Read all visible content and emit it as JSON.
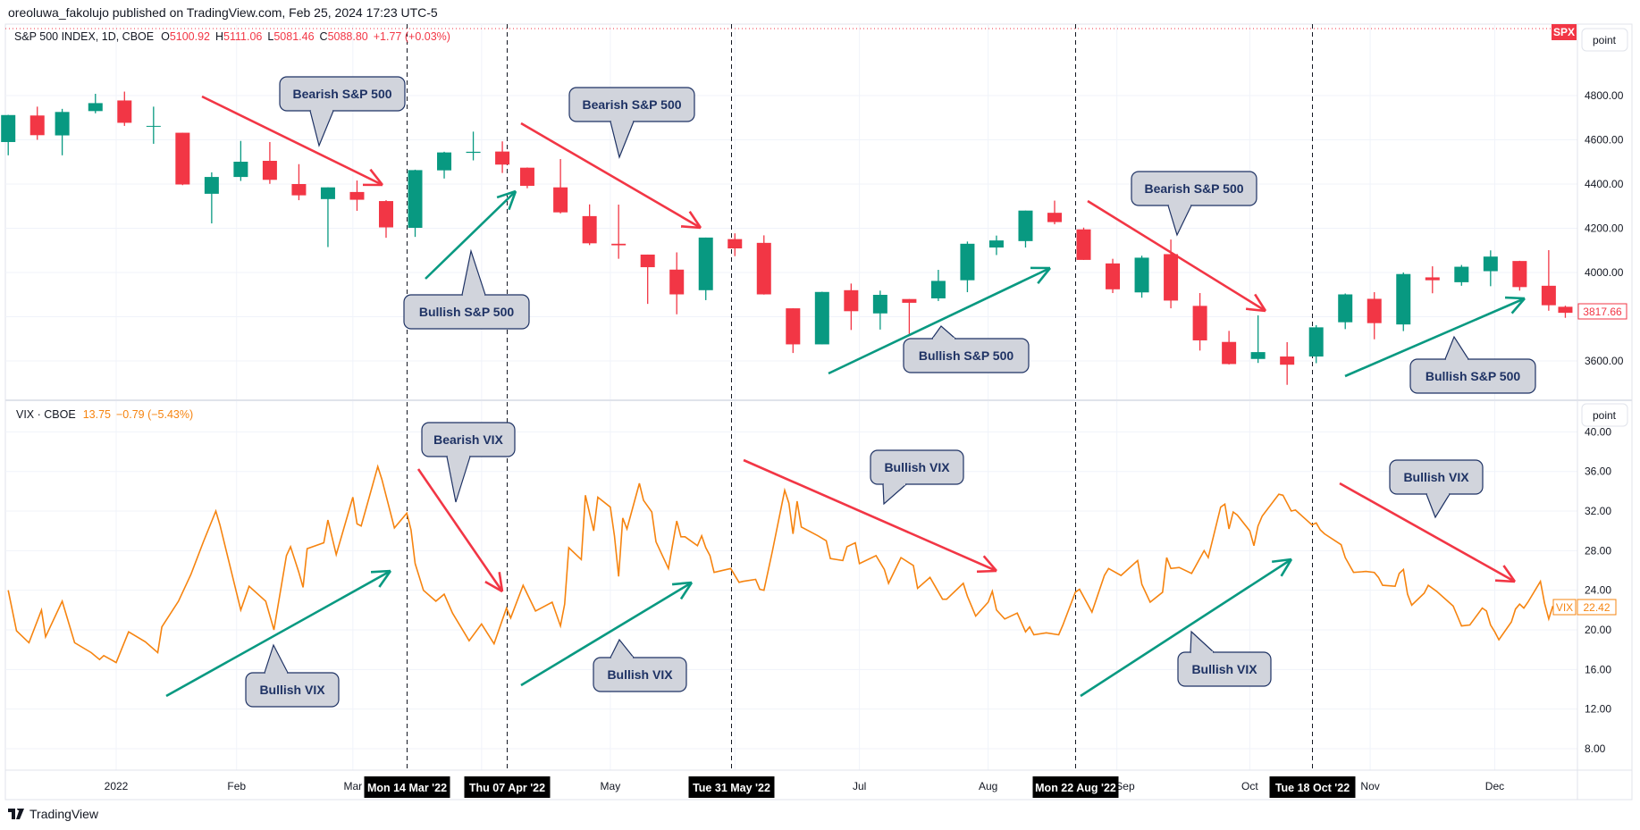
{
  "header": {
    "published": "oreoluwa_fakolujo published on TradingView.com, Feb 25, 2024 17:23 UTC-5"
  },
  "colors": {
    "up": "#089981",
    "down": "#f23645",
    "vix_line": "#f68410",
    "bearish_arrow": "#f23645",
    "bullish_arrow": "#089981",
    "callout_fill": "#d1d4dc",
    "callout_text": "#1e3264",
    "grid": "#f0f3fa"
  },
  "spx_legend": {
    "name": "S&P 500 INDEX, 1D, CBOE",
    "o_label": "O",
    "o": "5100.92",
    "h_label": "H",
    "h": "5111.06",
    "l_label": "L",
    "l": "5081.46",
    "c_label": "C",
    "c": "5088.80",
    "change": "+1.77 (+0.03%)"
  },
  "vix_legend": {
    "name": "VIX · CBOE",
    "value": "13.75",
    "change": "−0.79 (−5.43%)"
  },
  "spx_symbol_tag": "SPX",
  "scale_button": "point",
  "spx_last_price": "3817.66",
  "vix_tag_name": "VIX",
  "vix_last_value": "22.42",
  "spx_axis": [
    "4800.00",
    "4600.00",
    "4400.00",
    "4200.00",
    "4000.00",
    "3600.00"
  ],
  "vix_axis": [
    "40.00",
    "36.00",
    "32.00",
    "28.00",
    "24.00",
    "20.00",
    "16.00",
    "12.00",
    "8.00"
  ],
  "time_axis": [
    "2022",
    "Feb",
    "Mar",
    "May",
    "Jul",
    "Aug",
    "Sep",
    "Oct",
    "Nov",
    "Dec"
  ],
  "crosshair_dates": [
    {
      "label": "Mon 14 Mar '22",
      "date": "2022-03-14"
    },
    {
      "label": "Thu 07 Apr '22",
      "date": "2022-04-07"
    },
    {
      "label": "Tue 31 May '22",
      "date": "2022-05-31"
    },
    {
      "label": "Mon 22 Aug '22",
      "date": "2022-08-22"
    },
    {
      "label": "Tue 18 Oct '22",
      "date": "2022-10-18"
    }
  ],
  "annotations": {
    "callouts": [
      "Bearish S&P 500",
      "Bearish S&P 500",
      "Bearish S&P 500",
      "Bullish S&P 500",
      "Bullish S&P 500",
      "Bullish S&P 500",
      "Bearish VIX",
      "Bullish VIX",
      "Bullish VIX",
      "Bullish VIX",
      "Bullish VIX",
      "Bullish VIX"
    ]
  },
  "footer": {
    "brand": "TradingView"
  },
  "chart_data": [
    {
      "type": "candlestick",
      "series": "S&P 500 INDEX, 1D, CBOE",
      "ylim": [
        3450,
        4950
      ],
      "grid": true,
      "columns": [
        "week_ending",
        "open",
        "high",
        "low",
        "close"
      ],
      "ohlc": [
        [
          "2021-12-10",
          4590,
          4713,
          4530,
          4712
        ],
        [
          "2021-12-17",
          4710,
          4750,
          4600,
          4621
        ],
        [
          "2021-12-23",
          4620,
          4740,
          4530,
          4726
        ],
        [
          "2021-12-31",
          4730,
          4808,
          4720,
          4766
        ],
        [
          "2022-01-07",
          4778,
          4818,
          4663,
          4677
        ],
        [
          "2022-01-14",
          4663,
          4750,
          4582,
          4663
        ],
        [
          "2022-01-21",
          4632,
          4632,
          4395,
          4398
        ],
        [
          "2022-01-28",
          4356,
          4453,
          4222,
          4432
        ],
        [
          "2022-02-04",
          4432,
          4595,
          4414,
          4501
        ],
        [
          "2022-02-11",
          4505,
          4590,
          4401,
          4419
        ],
        [
          "2022-02-18",
          4400,
          4490,
          4327,
          4349
        ],
        [
          "2022-02-25",
          4332,
          4385,
          4115,
          4385
        ],
        [
          "2022-03-04",
          4364,
          4416,
          4279,
          4329
        ],
        [
          "2022-03-11",
          4323,
          4327,
          4157,
          4204
        ],
        [
          "2022-03-18",
          4202,
          4465,
          4161,
          4463
        ],
        [
          "2022-03-25",
          4462,
          4546,
          4425,
          4543
        ],
        [
          "2022-04-01",
          4541,
          4637,
          4507,
          4546
        ],
        [
          "2022-04-08",
          4547,
          4593,
          4450,
          4488
        ],
        [
          "2022-04-14",
          4474,
          4475,
          4381,
          4392
        ],
        [
          "2022-04-22",
          4385,
          4513,
          4267,
          4272
        ],
        [
          "2022-04-29",
          4255,
          4308,
          4124,
          4132
        ],
        [
          "2022-05-06",
          4130,
          4307,
          4062,
          4123
        ],
        [
          "2022-05-13",
          4081,
          4081,
          3858,
          4024
        ],
        [
          "2022-05-20",
          4013,
          4091,
          3811,
          3901
        ],
        [
          "2022-05-27",
          3920,
          4158,
          3875,
          4158
        ],
        [
          "2022-06-03",
          4151,
          4177,
          4074,
          4109
        ],
        [
          "2022-06-10",
          4134,
          4168,
          3900,
          3901
        ],
        [
          "2022-06-17",
          3838,
          3838,
          3636,
          3675
        ],
        [
          "2022-06-24",
          3675,
          3913,
          3675,
          3912
        ],
        [
          "2022-07-01",
          3920,
          3950,
          3740,
          3825
        ],
        [
          "2022-07-08",
          3815,
          3918,
          3742,
          3899
        ],
        [
          "2022-07-15",
          3880,
          3880,
          3722,
          3863
        ],
        [
          "2022-07-22",
          3883,
          4012,
          3871,
          3962
        ],
        [
          "2022-07-29",
          3965,
          4140,
          3911,
          4130
        ],
        [
          "2022-08-05",
          4113,
          4167,
          4079,
          4145
        ],
        [
          "2022-08-12",
          4142,
          4280,
          4113,
          4280
        ],
        [
          "2022-08-19",
          4270,
          4325,
          4218,
          4228
        ],
        [
          "2022-08-26",
          4195,
          4203,
          4057,
          4057
        ],
        [
          "2022-09-02",
          4041,
          4062,
          3907,
          3924
        ],
        [
          "2022-09-09",
          3910,
          4076,
          3886,
          4067
        ],
        [
          "2022-09-16",
          4083,
          4149,
          3838,
          3873
        ],
        [
          "2022-09-23",
          3849,
          3907,
          3647,
          3693
        ],
        [
          "2022-09-30",
          3686,
          3736,
          3584,
          3586
        ],
        [
          "2022-10-07",
          3609,
          3806,
          3591,
          3640
        ],
        [
          "2022-10-14",
          3620,
          3685,
          3492,
          3583
        ],
        [
          "2022-10-21",
          3620,
          3762,
          3590,
          3752
        ],
        [
          "2022-10-28",
          3775,
          3905,
          3744,
          3901
        ],
        [
          "2022-11-04",
          3881,
          3911,
          3698,
          3771
        ],
        [
          "2022-11-11",
          3765,
          4000,
          3735,
          3993
        ],
        [
          "2022-11-18",
          3978,
          4028,
          3906,
          3965
        ],
        [
          "2022-11-25",
          3956,
          4034,
          3940,
          4026
        ],
        [
          "2022-12-02",
          4006,
          4100,
          3938,
          4072
        ],
        [
          "2022-12-09",
          4052,
          4053,
          3918,
          3934
        ],
        [
          "2022-12-16",
          3940,
          4101,
          3827,
          3852
        ],
        [
          "2022-12-20",
          3845,
          3850,
          3795,
          3817.66
        ]
      ]
    },
    {
      "type": "line",
      "series": "VIX · CBOE",
      "ylim": [
        6,
        41
      ],
      "grid": true,
      "points": [
        [
          "2021-12-08",
          24.0
        ],
        [
          "2021-12-10",
          19.9
        ],
        [
          "2021-12-13",
          18.7
        ],
        [
          "2021-12-16",
          22.0
        ],
        [
          "2021-12-17",
          19.3
        ],
        [
          "2021-12-21",
          22.9
        ],
        [
          "2021-12-24",
          18.7
        ],
        [
          "2021-12-28",
          17.7
        ],
        [
          "2021-12-30",
          17.0
        ],
        [
          "2021-12-31",
          17.4
        ],
        [
          "2022-01-03",
          16.7
        ],
        [
          "2022-01-06",
          19.8
        ],
        [
          "2022-01-10",
          18.8
        ],
        [
          "2022-01-13",
          17.7
        ],
        [
          "2022-01-14",
          20.3
        ],
        [
          "2022-01-18",
          22.9
        ],
        [
          "2022-01-21",
          25.6
        ],
        [
          "2022-01-24",
          28.9
        ],
        [
          "2022-01-27",
          32.0
        ],
        [
          "2022-01-28",
          30.6
        ],
        [
          "2022-02-02",
          22.0
        ],
        [
          "2022-02-04",
          24.4
        ],
        [
          "2022-02-08",
          22.9
        ],
        [
          "2022-02-10",
          20.0
        ],
        [
          "2022-02-13",
          27.5
        ],
        [
          "2022-02-14",
          28.4
        ],
        [
          "2022-02-16",
          25.8
        ],
        [
          "2022-02-17",
          24.3
        ],
        [
          "2022-02-18",
          28.2
        ],
        [
          "2022-02-22",
          28.8
        ],
        [
          "2022-02-23",
          31.1
        ],
        [
          "2022-02-25",
          27.6
        ],
        [
          "2022-03-01",
          33.4
        ],
        [
          "2022-03-02",
          30.7
        ],
        [
          "2022-03-03",
          30.5
        ],
        [
          "2022-03-04",
          32.0
        ],
        [
          "2022-03-07",
          36.5
        ],
        [
          "2022-03-08",
          35.2
        ],
        [
          "2022-03-11",
          30.3
        ],
        [
          "2022-03-14",
          31.8
        ],
        [
          "2022-03-15",
          30.1
        ],
        [
          "2022-03-16",
          26.7
        ],
        [
          "2022-03-18",
          24.0
        ],
        [
          "2022-03-21",
          22.9
        ],
        [
          "2022-03-23",
          23.6
        ],
        [
          "2022-03-25",
          21.7
        ],
        [
          "2022-03-28",
          19.6
        ],
        [
          "2022-03-29",
          18.9
        ],
        [
          "2022-04-01",
          20.6
        ],
        [
          "2022-04-04",
          18.6
        ],
        [
          "2022-04-07",
          22.2
        ],
        [
          "2022-04-08",
          21.2
        ],
        [
          "2022-04-11",
          24.5
        ],
        [
          "2022-04-14",
          21.9
        ],
        [
          "2022-04-18",
          22.8
        ],
        [
          "2022-04-20",
          20.4
        ],
        [
          "2022-04-21",
          22.6
        ],
        [
          "2022-04-22",
          28.3
        ],
        [
          "2022-04-25",
          27.1
        ],
        [
          "2022-04-26",
          33.6
        ],
        [
          "2022-04-28",
          30.0
        ],
        [
          "2022-04-29",
          33.4
        ],
        [
          "2022-05-02",
          32.4
        ],
        [
          "2022-05-03",
          29.5
        ],
        [
          "2022-05-04",
          25.4
        ],
        [
          "2022-05-05",
          31.3
        ],
        [
          "2022-05-06",
          30.2
        ],
        [
          "2022-05-09",
          34.8
        ],
        [
          "2022-05-10",
          33.1
        ],
        [
          "2022-05-12",
          31.9
        ],
        [
          "2022-05-13",
          28.9
        ],
        [
          "2022-05-16",
          26.2
        ],
        [
          "2022-05-18",
          31.0
        ],
        [
          "2022-05-19",
          29.4
        ],
        [
          "2022-05-20",
          29.4
        ],
        [
          "2022-05-23",
          28.5
        ],
        [
          "2022-05-24",
          29.5
        ],
        [
          "2022-05-25",
          28.3
        ],
        [
          "2022-05-26",
          27.5
        ],
        [
          "2022-05-27",
          25.8
        ],
        [
          "2022-05-31",
          26.2
        ],
        [
          "2022-06-02",
          24.8
        ],
        [
          "2022-06-03",
          24.9
        ],
        [
          "2022-06-06",
          25.1
        ],
        [
          "2022-06-07",
          24.1
        ],
        [
          "2022-06-08",
          24.0
        ],
        [
          "2022-06-10",
          27.9
        ],
        [
          "2022-06-13",
          34.1
        ],
        [
          "2022-06-14",
          32.8
        ],
        [
          "2022-06-15",
          29.7
        ],
        [
          "2022-06-16",
          33.0
        ],
        [
          "2022-06-17",
          30.4
        ],
        [
          "2022-06-21",
          29.5
        ],
        [
          "2022-06-23",
          29.0
        ],
        [
          "2022-06-24",
          27.2
        ],
        [
          "2022-06-27",
          27.0
        ],
        [
          "2022-06-28",
          28.4
        ],
        [
          "2022-06-30",
          28.8
        ],
        [
          "2022-07-01",
          26.7
        ],
        [
          "2022-07-05",
          27.5
        ],
        [
          "2022-07-07",
          26.1
        ],
        [
          "2022-07-08",
          24.7
        ],
        [
          "2022-07-11",
          27.3
        ],
        [
          "2022-07-14",
          26.5
        ],
        [
          "2022-07-15",
          24.2
        ],
        [
          "2022-07-18",
          25.3
        ],
        [
          "2022-07-21",
          23.1
        ],
        [
          "2022-07-22",
          23.1
        ],
        [
          "2022-07-26",
          24.7
        ],
        [
          "2022-07-27",
          23.4
        ],
        [
          "2022-07-29",
          21.4
        ],
        [
          "2022-08-01",
          22.8
        ],
        [
          "2022-08-02",
          23.9
        ],
        [
          "2022-08-03",
          22.0
        ],
        [
          "2022-08-05",
          21.1
        ],
        [
          "2022-08-08",
          21.7
        ],
        [
          "2022-08-10",
          19.8
        ],
        [
          "2022-08-11",
          20.3
        ],
        [
          "2022-08-12",
          19.5
        ],
        [
          "2022-08-15",
          19.7
        ],
        [
          "2022-08-18",
          19.5
        ],
        [
          "2022-08-19",
          20.5
        ],
        [
          "2022-08-22",
          23.8
        ],
        [
          "2022-08-23",
          24.1
        ],
        [
          "2022-08-26",
          21.8
        ],
        [
          "2022-08-29",
          25.5
        ],
        [
          "2022-08-30",
          26.2
        ],
        [
          "2022-09-02",
          25.5
        ],
        [
          "2022-09-06",
          27.0
        ],
        [
          "2022-09-07",
          24.6
        ],
        [
          "2022-09-09",
          22.8
        ],
        [
          "2022-09-12",
          23.8
        ],
        [
          "2022-09-13",
          27.3
        ],
        [
          "2022-09-14",
          26.2
        ],
        [
          "2022-09-16",
          26.3
        ],
        [
          "2022-09-19",
          25.7
        ],
        [
          "2022-09-22",
          28.0
        ],
        [
          "2022-09-23",
          27.3
        ],
        [
          "2022-09-26",
          32.4
        ],
        [
          "2022-09-27",
          32.7
        ],
        [
          "2022-09-28",
          30.2
        ],
        [
          "2022-09-29",
          31.9
        ],
        [
          "2022-09-30",
          31.6
        ],
        [
          "2022-10-03",
          30.0
        ],
        [
          "2022-10-04",
          28.5
        ],
        [
          "2022-10-05",
          30.5
        ],
        [
          "2022-10-06",
          31.5
        ],
        [
          "2022-10-10",
          33.7
        ],
        [
          "2022-10-11",
          33.6
        ],
        [
          "2022-10-13",
          32.0
        ],
        [
          "2022-10-14",
          32.1
        ],
        [
          "2022-10-18",
          30.6
        ],
        [
          "2022-10-19",
          30.8
        ],
        [
          "2022-10-20",
          30.1
        ],
        [
          "2022-10-21",
          29.7
        ],
        [
          "2022-10-25",
          28.6
        ],
        [
          "2022-10-26",
          27.3
        ],
        [
          "2022-10-28",
          25.8
        ],
        [
          "2022-10-31",
          25.9
        ],
        [
          "2022-11-02",
          25.8
        ],
        [
          "2022-11-03",
          25.3
        ],
        [
          "2022-11-04",
          24.5
        ],
        [
          "2022-11-07",
          24.4
        ],
        [
          "2022-11-08",
          25.7
        ],
        [
          "2022-11-09",
          26.1
        ],
        [
          "2022-11-10",
          23.6
        ],
        [
          "2022-11-11",
          22.5
        ],
        [
          "2022-11-14",
          23.7
        ],
        [
          "2022-11-15",
          24.5
        ],
        [
          "2022-11-17",
          23.9
        ],
        [
          "2022-11-21",
          22.4
        ],
        [
          "2022-11-22",
          21.4
        ],
        [
          "2022-11-23",
          20.4
        ],
        [
          "2022-11-25",
          20.5
        ],
        [
          "2022-11-28",
          22.2
        ],
        [
          "2022-11-29",
          21.9
        ],
        [
          "2022-11-30",
          20.5
        ],
        [
          "2022-12-01",
          19.8
        ],
        [
          "2022-12-02",
          19.0
        ],
        [
          "2022-12-05",
          20.8
        ],
        [
          "2022-12-06",
          22.1
        ],
        [
          "2022-12-07",
          22.6
        ],
        [
          "2022-12-08",
          22.2
        ],
        [
          "2022-12-09",
          22.8
        ],
        [
          "2022-12-12",
          24.9
        ],
        [
          "2022-12-13",
          22.7
        ],
        [
          "2022-12-14",
          21.1
        ],
        [
          "2022-12-15",
          22.42
        ]
      ]
    }
  ]
}
